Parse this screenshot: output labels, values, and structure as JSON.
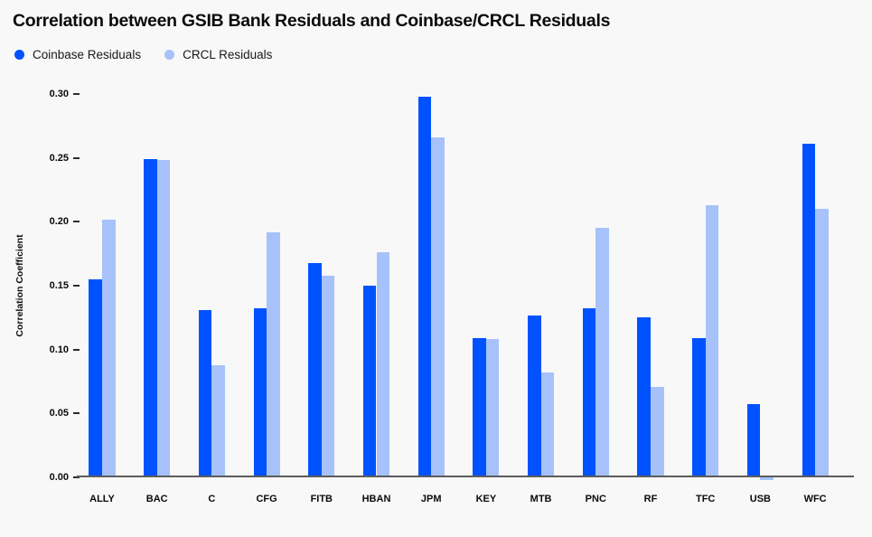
{
  "header": {
    "title": "Correlation between GSIB Bank Residuals and Coinbase/CRCL Residuals"
  },
  "colors": {
    "background": "#f8f8f8",
    "coinbase_blue": "#0052ff",
    "crcl_light_blue": "#a7c2fa",
    "axis_line": "#5c5c5c",
    "text": "#0a0b0d"
  },
  "chart_data": {
    "type": "bar",
    "title": "Correlation between GSIB Bank Residuals and Coinbase/CRCL Residuals",
    "xlabel": "",
    "ylabel": "Correlation Coefficient",
    "ylim": [
      0,
      0.3
    ],
    "yticks": [
      0.0,
      0.05,
      0.1,
      0.15,
      0.2,
      0.25,
      0.3
    ],
    "ytick_labels": [
      "0.00",
      "0.05",
      "0.10",
      "0.15",
      "0.20",
      "0.25",
      "0.30"
    ],
    "grid": false,
    "legend_position": "top-left",
    "categories": [
      "ALLY",
      "BAC",
      "C",
      "CFG",
      "FITB",
      "HBAN",
      "JPM",
      "KEY",
      "MTB",
      "PNC",
      "RF",
      "TFC",
      "USB",
      "WFC"
    ],
    "series": [
      {
        "name": "Coinbase Residuals",
        "color": "#0052ff",
        "values": [
          0.155,
          0.249,
          0.131,
          0.132,
          0.168,
          0.15,
          0.298,
          0.109,
          0.127,
          0.132,
          0.125,
          0.109,
          0.057,
          0.261
        ]
      },
      {
        "name": "CRCL Residuals",
        "color": "#a7c2fa",
        "values": [
          0.202,
          0.248,
          0.088,
          0.192,
          0.158,
          0.176,
          0.266,
          0.108,
          0.082,
          0.195,
          0.071,
          0.213,
          -0.002,
          0.21
        ]
      }
    ]
  }
}
